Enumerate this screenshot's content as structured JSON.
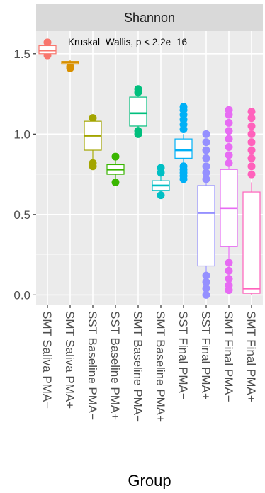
{
  "chart_data": {
    "type": "boxplot",
    "facet_label": "Shannon",
    "annotation": "Kruskal−Wallis, p < 2.2e−16",
    "xlabel": "Group",
    "ylabel": "",
    "ylim": [
      -0.06,
      1.64
    ],
    "yticks": [
      0.0,
      0.5,
      1.0,
      1.5
    ],
    "ytick_labels": [
      "0.0",
      "0.5",
      "1.0",
      "1.5"
    ],
    "grid": true,
    "legend": "none",
    "categories": [
      "SMT Saliva PMA−",
      "SMT Saliva PMA+",
      "SST Baseline PMA−",
      "SST Baseline PMA+",
      "SMT Baseline PMA−",
      "SMT Baseline PMA+",
      "SST Final PMA−",
      "SST Final PMA+",
      "SMT Final PMA−",
      "SMT Final PMA+"
    ],
    "colors": [
      "#F8766D",
      "#D89000",
      "#A3A500",
      "#39B600",
      "#00BF7D",
      "#00BFC4",
      "#00B0F6",
      "#9590FF",
      "#E76BF3",
      "#FF62BC"
    ],
    "boxes": [
      {
        "whisker_low": 1.5,
        "q1": 1.5,
        "median": 1.52,
        "q3": 1.55,
        "whisker_high": 1.56,
        "outliers": [
          1.49,
          1.57
        ]
      },
      {
        "whisker_low": 1.43,
        "q1": 1.435,
        "median": 1.445,
        "q3": 1.452,
        "whisker_high": 1.46,
        "outliers": [
          1.42,
          1.41
        ]
      },
      {
        "whisker_low": 0.84,
        "q1": 0.9,
        "median": 0.99,
        "q3": 1.08,
        "whisker_high": 1.09,
        "outliers": [
          0.8,
          0.82,
          1.1
        ]
      },
      {
        "whisker_low": 0.72,
        "q1": 0.75,
        "median": 0.78,
        "q3": 0.81,
        "whisker_high": 0.84,
        "outliers": [
          0.7,
          0.86
        ]
      },
      {
        "whisker_low": 1.04,
        "q1": 1.05,
        "median": 1.13,
        "q3": 1.23,
        "whisker_high": 1.24,
        "outliers": [
          1.0,
          1.02,
          1.26,
          1.28
        ]
      },
      {
        "whisker_low": 0.64,
        "q1": 0.65,
        "median": 0.68,
        "q3": 0.71,
        "whisker_high": 0.74,
        "outliers": [
          0.62,
          0.76,
          0.79
        ]
      },
      {
        "whisker_low": 0.82,
        "q1": 0.85,
        "median": 0.9,
        "q3": 0.97,
        "whisker_high": 1.0,
        "outliers": [
          0.72,
          0.74,
          0.76,
          0.78,
          0.8,
          1.03,
          1.06,
          1.09,
          1.12,
          1.15,
          1.17
        ]
      },
      {
        "whisker_low": 0.02,
        "q1": 0.18,
        "median": 0.51,
        "q3": 0.68,
        "whisker_high": 0.7,
        "outliers": [
          0.0,
          0.04,
          0.08,
          0.12,
          0.72,
          0.76,
          0.8,
          0.85,
          0.9,
          0.95,
          1.0
        ]
      },
      {
        "whisker_low": 0.04,
        "q1": 0.3,
        "median": 0.54,
        "q3": 0.78,
        "whisker_high": 0.8,
        "outliers": [
          0.03,
          0.06,
          0.1,
          0.15,
          0.2,
          0.82,
          0.87,
          0.92,
          0.97,
          1.02,
          1.07,
          1.12,
          1.15
        ]
      },
      {
        "whisker_low": 0.0,
        "q1": 0.01,
        "median": 0.04,
        "q3": 0.64,
        "whisker_high": 0.7,
        "outliers": [
          0.75,
          0.8,
          0.85,
          0.9,
          0.95,
          1.0,
          1.05,
          1.1,
          1.14
        ]
      }
    ]
  }
}
